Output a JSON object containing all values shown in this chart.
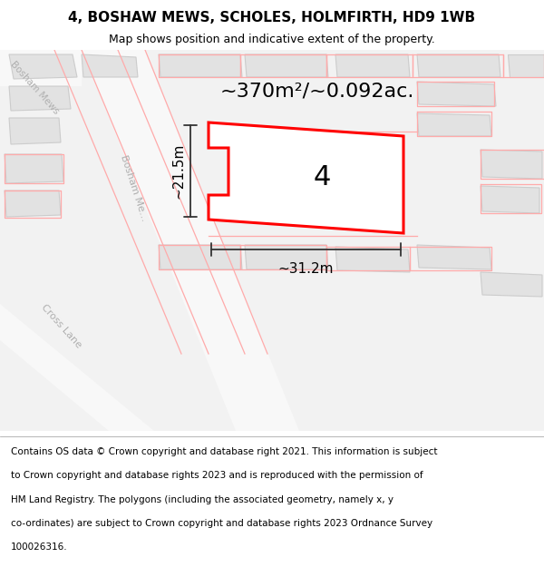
{
  "title": "4, BOSHAW MEWS, SCHOLES, HOLMFIRTH, HD9 1WB",
  "subtitle": "Map shows position and indicative extent of the property.",
  "area_label": "~370m²/~0.092ac.",
  "plot_number": "4",
  "width_label": "~31.2m",
  "height_label": "~21.5m",
  "footer_lines": [
    "Contains OS data © Crown copyright and database right 2021. This information is subject",
    "to Crown copyright and database rights 2023 and is reproduced with the permission of",
    "HM Land Registry. The polygons (including the associated geometry, namely x, y",
    "co-ordinates) are subject to Crown copyright and database rights 2023 Ordnance Survey",
    "100026316."
  ],
  "bg_color": "#f2f2f2",
  "red_line_color": "#ff0000",
  "pink_line_color": "#ffaaaa",
  "dim_line_color": "#333333",
  "title_fontsize": 11,
  "subtitle_fontsize": 9,
  "area_fontsize": 16,
  "plot_num_fontsize": 22,
  "dim_fontsize": 11,
  "footer_fontsize": 7.5,
  "road_label_color": "#b0b0b0",
  "building_color": "#e2e2e2",
  "building_edge": "#cccccc",
  "road_color": "#f8f8f8"
}
